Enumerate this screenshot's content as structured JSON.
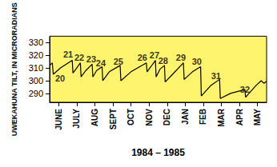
{
  "chart_data": {
    "type": "line",
    "x_label": "1984 – 1985",
    "y_label": "UWEKAHUNA TILT, IN MICRORADIANS",
    "x": [
      0,
      0.15,
      0.2,
      0.6,
      1.25,
      1.29,
      1.45,
      1.7,
      1.74,
      2.0,
      2.35,
      2.39,
      2.6,
      2.9,
      2.94,
      3.3,
      3.9,
      3.94,
      4.5,
      5.35,
      5.39,
      5.6,
      5.85,
      5.89,
      6.1,
      6.35,
      6.39,
      6.8,
      7.4,
      7.44,
      7.9,
      8.35,
      8.39,
      8.9,
      9.4,
      9.44,
      10.0,
      10.8,
      10.84,
      11.4,
      11.7,
      11.85,
      12
    ],
    "values": [
      312,
      314,
      305,
      310,
      316,
      306,
      309,
      314,
      303,
      308,
      313,
      303,
      308,
      311,
      300,
      307,
      312,
      300,
      307,
      314,
      307,
      311,
      316,
      303,
      309,
      312,
      299,
      305,
      314,
      301,
      307,
      311,
      288,
      296,
      301,
      286,
      290,
      293,
      287,
      296,
      300,
      298,
      299.5
    ],
    "color": "#000000",
    "xlim": [
      0,
      12
    ],
    "xticks": [
      {
        "value": 0.5,
        "label": "JUNE"
      },
      {
        "value": 1.5,
        "label": "JULY"
      },
      {
        "value": 2.5,
        "label": "AUG"
      },
      {
        "value": 3.5,
        "label": "SEPT"
      },
      {
        "value": 4.5,
        "label": "OCT"
      },
      {
        "value": 5.5,
        "label": "NOV"
      },
      {
        "value": 6.5,
        "label": "DEC"
      },
      {
        "value": 7.5,
        "label": "JAN"
      },
      {
        "value": 8.5,
        "label": "FEB"
      },
      {
        "value": 9.5,
        "label": "MAR"
      },
      {
        "value": 10.5,
        "label": "APR"
      },
      {
        "value": 11.5,
        "label": "MAY"
      }
    ],
    "ylim": [
      283,
      335
    ],
    "yticks": [
      290,
      300,
      310,
      320,
      330
    ],
    "annotations": [
      {
        "text": "20",
        "x": 0.58,
        "y": 302
      },
      {
        "text": "21",
        "x": 1.02,
        "y": 321
      },
      {
        "text": "22",
        "x": 1.64,
        "y": 318
      },
      {
        "text": "23",
        "x": 2.3,
        "y": 317
      },
      {
        "text": "24",
        "x": 2.83,
        "y": 314
      },
      {
        "text": "25",
        "x": 3.8,
        "y": 315
      },
      {
        "text": "26",
        "x": 5.13,
        "y": 318
      },
      {
        "text": "27",
        "x": 5.8,
        "y": 320
      },
      {
        "text": "28",
        "x": 6.28,
        "y": 316
      },
      {
        "text": "29",
        "x": 7.26,
        "y": 318
      },
      {
        "text": "30",
        "x": 8.14,
        "y": 315
      },
      {
        "text": "31",
        "x": 9.2,
        "y": 304
      },
      {
        "text": "32",
        "x": 10.8,
        "y": 293
      }
    ],
    "grid": false
  }
}
